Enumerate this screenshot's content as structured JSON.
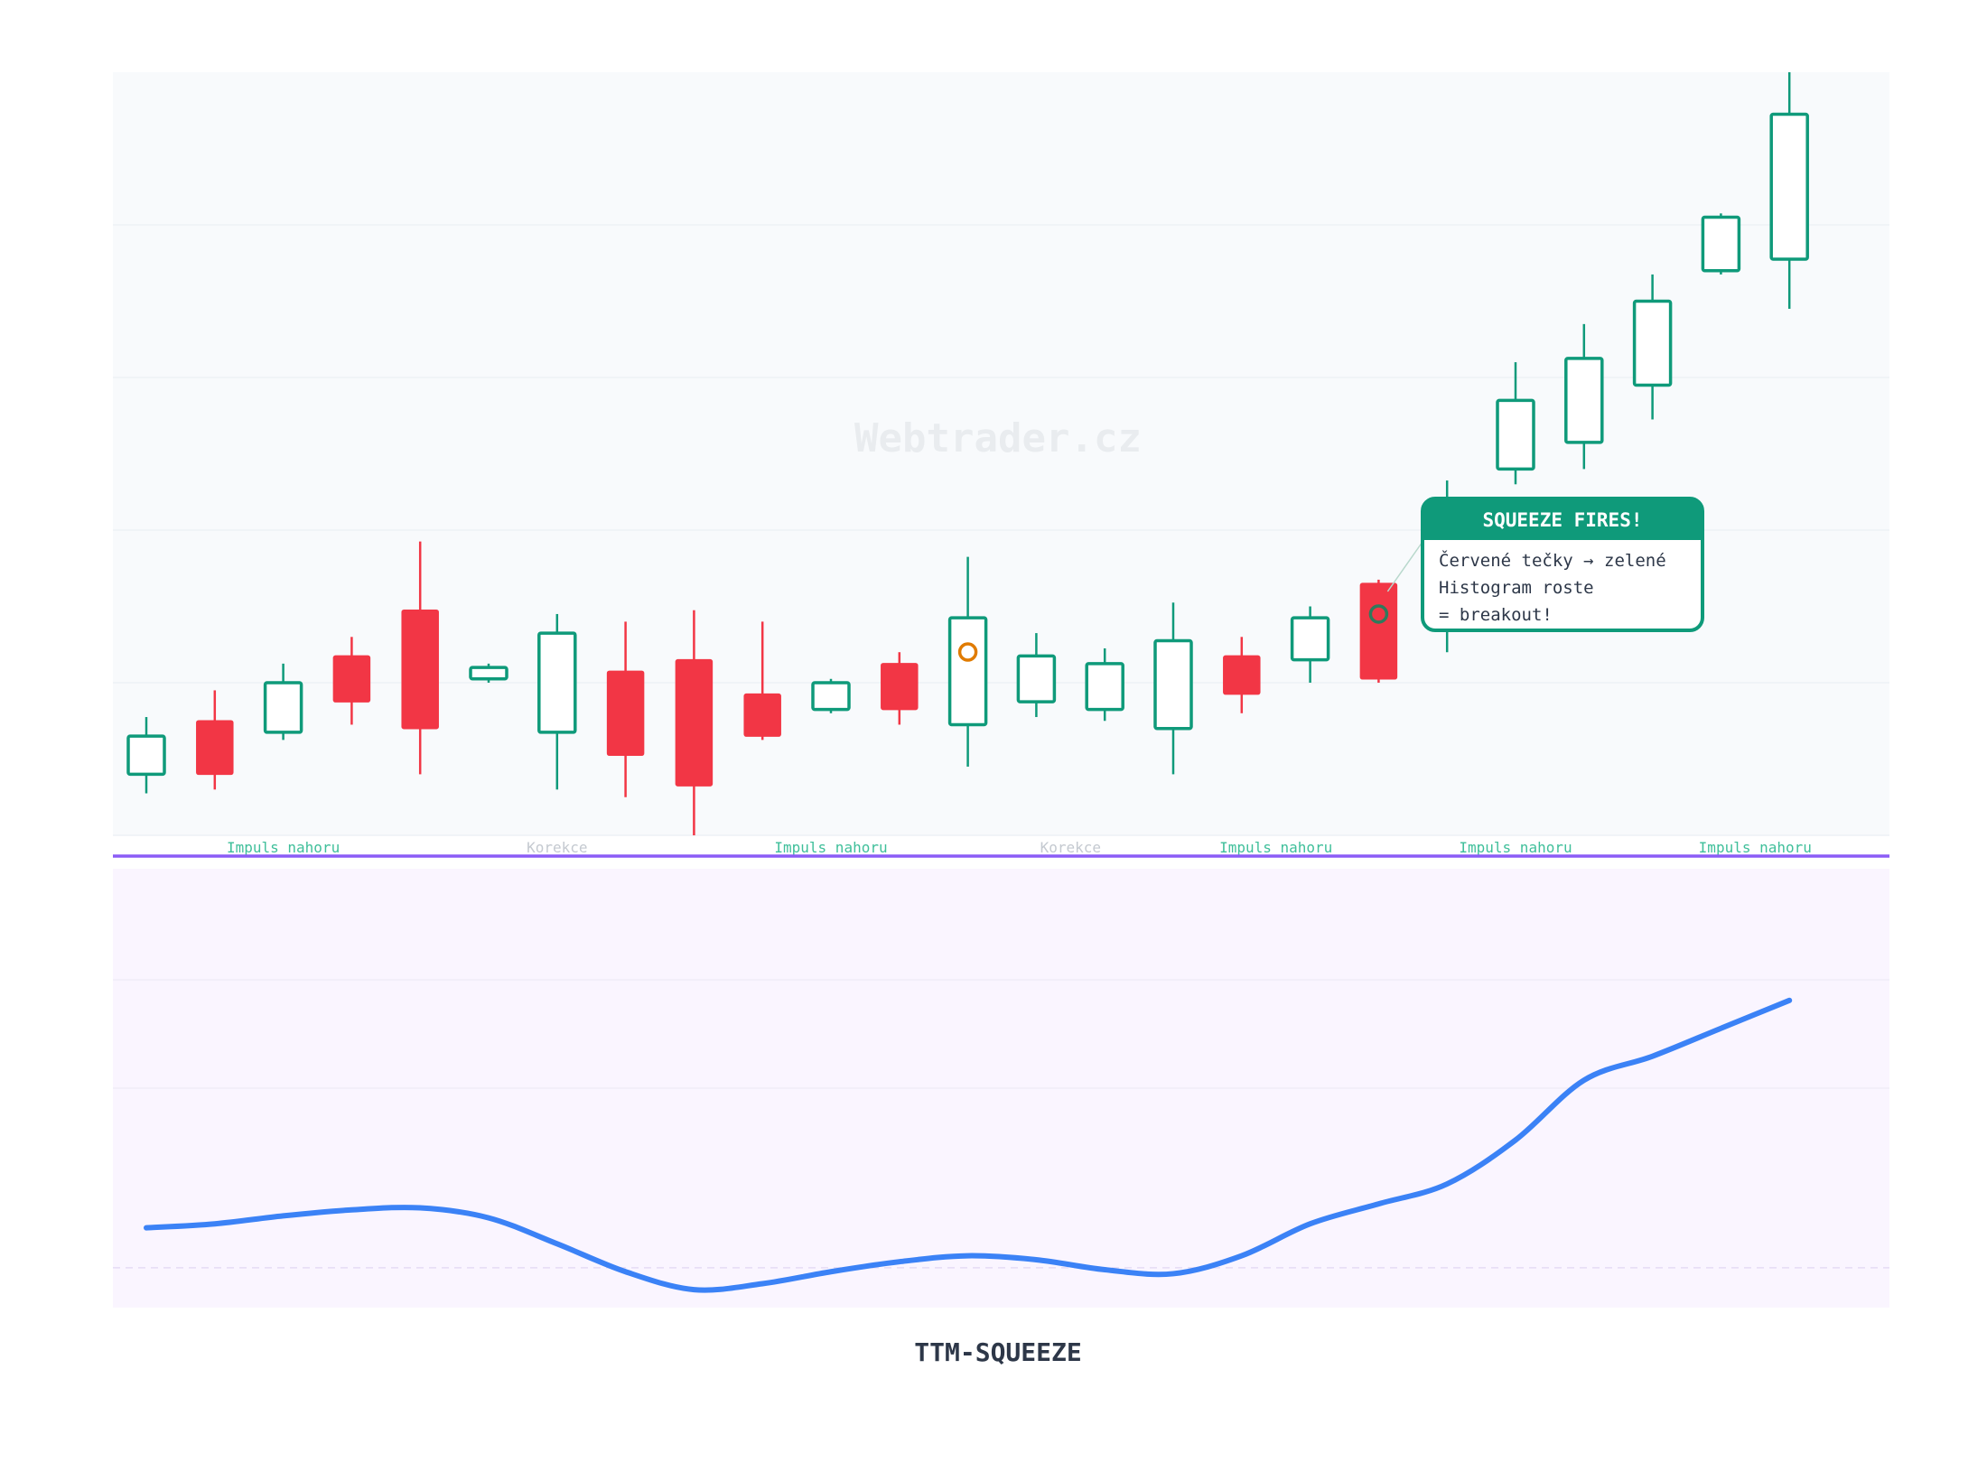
{
  "chart_data": [
    {
      "type": "candlestick",
      "watermark": "Webtrader.cz",
      "ylim": [
        0,
        100
      ],
      "colors": {
        "up": "#0f9a7a",
        "down": "#f23645",
        "background": "#f8fafc",
        "grid": "#eef1f5",
        "separator": "#8b5cf6"
      },
      "candles": [
        {
          "open": 8,
          "high": 15.5,
          "low": 5.5,
          "close": 13,
          "dir": "up"
        },
        {
          "open": 15,
          "high": 19,
          "low": 6,
          "close": 8,
          "dir": "down"
        },
        {
          "open": 13.5,
          "high": 22.5,
          "low": 12.5,
          "close": 20,
          "dir": "up"
        },
        {
          "open": 23.5,
          "high": 26,
          "low": 14.5,
          "close": 17.5,
          "dir": "down"
        },
        {
          "open": 29.5,
          "high": 38.5,
          "low": 8,
          "close": 14,
          "dir": "down"
        },
        {
          "open": 20.5,
          "high": 22.5,
          "low": 20,
          "close": 22,
          "dir": "up"
        },
        {
          "open": 13.5,
          "high": 29,
          "low": 6,
          "close": 26.5,
          "dir": "up"
        },
        {
          "open": 21.5,
          "high": 28,
          "low": 5,
          "close": 10.5,
          "dir": "down"
        },
        {
          "open": 23,
          "high": 29.5,
          "low": 0,
          "close": 6.5,
          "dir": "down"
        },
        {
          "open": 18.5,
          "high": 28,
          "low": 12.5,
          "close": 13,
          "dir": "down"
        },
        {
          "open": 16.5,
          "high": 20.5,
          "low": 16,
          "close": 20,
          "dir": "up"
        },
        {
          "open": 22.5,
          "high": 24,
          "low": 14.5,
          "close": 16.5,
          "dir": "down"
        },
        {
          "open": 14.5,
          "high": 36.5,
          "low": 9,
          "close": 28.5,
          "dir": "up",
          "marker": "orange"
        },
        {
          "open": 17.5,
          "high": 26.5,
          "low": 15.5,
          "close": 23.5,
          "dir": "up"
        },
        {
          "open": 16.5,
          "high": 24.5,
          "low": 15,
          "close": 22.5,
          "dir": "up"
        },
        {
          "open": 14,
          "high": 30.5,
          "low": 8,
          "close": 25.5,
          "dir": "up"
        },
        {
          "open": 23.5,
          "high": 26,
          "low": 16,
          "close": 18.5,
          "dir": "down"
        },
        {
          "open": 23,
          "high": 30,
          "low": 20,
          "close": 28.5,
          "dir": "up"
        },
        {
          "open": 33,
          "high": 33.5,
          "low": 20,
          "close": 20.5,
          "dir": "down",
          "marker": "green"
        },
        {
          "open": 32,
          "high": 46.5,
          "low": 24,
          "close": 44,
          "dir": "up"
        },
        {
          "open": 48,
          "high": 62,
          "low": 46,
          "close": 57,
          "dir": "up"
        },
        {
          "open": 51.5,
          "high": 67,
          "low": 48,
          "close": 62.5,
          "dir": "up"
        },
        {
          "open": 59,
          "high": 73.5,
          "low": 54.5,
          "close": 70,
          "dir": "up"
        },
        {
          "open": 74,
          "high": 81.5,
          "low": 73.5,
          "close": 81,
          "dir": "up"
        },
        {
          "open": 75.5,
          "high": 100,
          "low": 69,
          "close": 94.5,
          "dir": "up"
        }
      ],
      "phases": [
        {
          "label": "Impuls nahoru",
          "type": "impulse",
          "center_index": 2
        },
        {
          "label": "Korekce",
          "type": "correction",
          "center_index": 6
        },
        {
          "label": "Impuls nahoru",
          "type": "impulse",
          "center_index": 10
        },
        {
          "label": "Korekce",
          "type": "correction",
          "center_index": 13.5
        },
        {
          "label": "Impuls nahoru",
          "type": "impulse",
          "center_index": 16.5
        },
        {
          "label": "Impuls nahoru",
          "type": "impulse",
          "center_index": 20
        },
        {
          "label": "Impuls nahoru",
          "type": "impulse",
          "center_index": 23.5
        }
      ],
      "phase_colors": {
        "impulse": "#3fbf9a",
        "correction": "#c4c9d0"
      },
      "annotation": {
        "title": "SQUEEZE FIRES!",
        "lines": [
          "Červené tečky → zelené",
          "Histogram roste",
          "= breakout!"
        ],
        "anchor_index": 18,
        "color": "#0f9a7a"
      }
    },
    {
      "type": "line",
      "title": "TTM-SQUEEZE",
      "ylim": [
        -1,
        10
      ],
      "zero_line": 0,
      "colors": {
        "line": "#3b82f6",
        "background": "#faf5ff"
      },
      "series": [
        {
          "values": [
            1.0,
            1.1,
            1.3,
            1.45,
            1.5,
            1.25,
            0.6,
            -0.1,
            -0.55,
            -0.4,
            -0.1,
            0.15,
            0.3,
            0.2,
            -0.05,
            -0.15,
            0.3,
            1.1,
            1.6,
            2.1,
            3.2,
            4.7,
            5.3,
            6.0,
            6.7
          ]
        }
      ]
    }
  ]
}
